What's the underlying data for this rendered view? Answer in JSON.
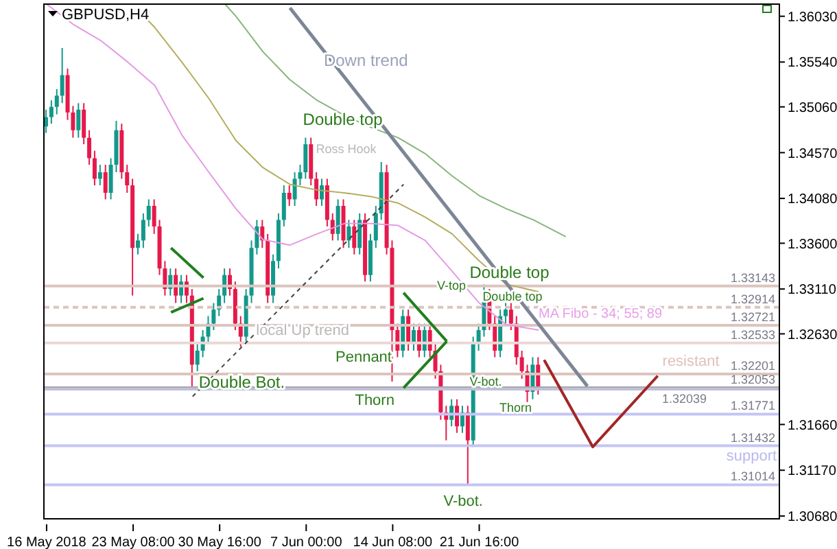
{
  "chart_data": {
    "type": "candlestick",
    "title": "GBPUSD,H4",
    "categories": [
      "16 May 2018",
      null,
      null,
      null,
      null,
      null,
      null,
      null,
      null,
      null,
      null,
      null,
      null,
      null,
      null,
      null,
      "23 May 08:00",
      null,
      null,
      null,
      null,
      null,
      null,
      null,
      null,
      null,
      null,
      null,
      null,
      null,
      null,
      null,
      "30 May 16:00",
      null,
      null,
      null,
      null,
      null,
      null,
      null,
      null,
      null,
      null,
      null,
      null,
      null,
      null,
      null,
      "7 Jun 00:00",
      null,
      null,
      null,
      null,
      null,
      null,
      null,
      null,
      null,
      null,
      null,
      null,
      null,
      null,
      null,
      "14 Jun 08:00",
      null,
      null,
      null,
      null,
      null,
      null,
      null,
      null,
      null,
      null,
      null,
      null,
      null,
      null,
      null,
      "21 Jun 16:00",
      null,
      null,
      null,
      null,
      null,
      null,
      null,
      null,
      null,
      null,
      null,
      null,
      null,
      null,
      null,
      null,
      null,
      null,
      null,
      null,
      null,
      null,
      null,
      null,
      null,
      null,
      null,
      null,
      null,
      null,
      null,
      null,
      null,
      null,
      null,
      null,
      null,
      null,
      null,
      null,
      null,
      null,
      null,
      null,
      null,
      null,
      null,
      null,
      null,
      null,
      null,
      null,
      null,
      null,
      null
    ],
    "colors": [
      "#13988a",
      "#13988a",
      "#13988a",
      "#13988a",
      "#e6194b",
      "#e6194b",
      "#13988a",
      "#e6194b",
      "#e6194b",
      "#e6194b",
      "#13988a",
      "#e6194b",
      "#13988a",
      "#13988a",
      "#e6194b",
      "#e6194b",
      "#e6194b",
      "#13988a",
      "#13988a",
      "#13988a",
      "#e6194b",
      "#e6194b",
      "#e6194b",
      "#13988a",
      "#e6194b",
      "#13988a",
      "#e6194b",
      "#e6194b",
      "#13988a",
      "#13988a",
      "#13988a",
      "#13988a",
      "#13988a",
      "#13988a",
      "#e6194b",
      "#e6194b",
      "#e6194b",
      "#13988a",
      "#13988a",
      "#13988a",
      "#e6194b",
      "#e6194b",
      "#13988a",
      "#13988a",
      "#13988a",
      "#e6194b",
      "#13988a",
      "#13988a",
      "#13988a",
      "#e6194b",
      "#e6194b",
      "#13988a",
      "#e6194b",
      "#e6194b",
      "#13988a",
      "#e6194b",
      "#13988a",
      "#e6194b",
      "#13988a",
      "#e6194b",
      "#13988a",
      "#13988a",
      "#13988a",
      "#e6194b",
      "#e6194b",
      "#e6194b",
      "#13988a",
      "#e6194b",
      "#13988a",
      "#e6194b",
      "#13988a",
      "#e6194b",
      "#e6194b",
      "#e6194b",
      "#e6194b",
      "#13988a",
      "#e6194b",
      "#13988a",
      "#e6194b",
      "#13988a",
      "#13988a",
      "#13988a",
      "#e6194b",
      "#e6194b",
      "#13988a",
      "#13988a",
      "#e6194b",
      "#e6194b",
      "#e6194b",
      "#e6194b",
      "#13988a",
      "#e6194b",
      null,
      null,
      null,
      null,
      null,
      null,
      null,
      null,
      null,
      null,
      null,
      null,
      null,
      null,
      null,
      null,
      null,
      null,
      null,
      null,
      null,
      null,
      null,
      null,
      null,
      null,
      null,
      null,
      null,
      null,
      null,
      null,
      null,
      null,
      null,
      null,
      null,
      null,
      null,
      null,
      null,
      null,
      null,
      null
    ],
    "ohlc": [
      [
        1.3485,
        1.3503,
        1.3478,
        1.3495
      ],
      [
        1.3495,
        1.3513,
        1.3488,
        1.3506
      ],
      [
        1.3506,
        1.3525,
        1.3498,
        1.3518
      ],
      [
        1.3518,
        1.3569,
        1.351,
        1.354
      ],
      [
        1.354,
        1.3547,
        1.3492,
        1.35
      ],
      [
        1.35,
        1.3507,
        1.3473,
        1.3481
      ],
      [
        1.3481,
        1.351,
        1.3473,
        1.3503
      ],
      [
        1.3503,
        1.351,
        1.3466,
        1.3473
      ],
      [
        1.3473,
        1.3481,
        1.3444,
        1.3451
      ],
      [
        1.3451,
        1.3459,
        1.3422,
        1.3429
      ],
      [
        1.3429,
        1.3444,
        1.3422,
        1.3436
      ],
      [
        1.3436,
        1.3444,
        1.3407,
        1.3414
      ],
      [
        1.3414,
        1.3451,
        1.3407,
        1.3444
      ],
      [
        1.3444,
        1.3491,
        1.3436,
        1.3481
      ],
      [
        1.3481,
        1.3488,
        1.3429,
        1.3436
      ],
      [
        1.3436,
        1.3444,
        1.3414,
        1.3422
      ],
      [
        1.3422,
        1.3429,
        1.3304,
        1.3355
      ],
      [
        1.3355,
        1.337,
        1.3348,
        1.3363
      ],
      [
        1.3363,
        1.3392,
        1.3355,
        1.3385
      ],
      [
        1.3385,
        1.3407,
        1.3378,
        1.34
      ],
      [
        1.34,
        1.3407,
        1.337,
        1.3378
      ],
      [
        1.3378,
        1.3385,
        1.3326,
        1.3333
      ],
      [
        1.3333,
        1.3341,
        1.3304,
        1.3311
      ],
      [
        1.3311,
        1.3333,
        1.3304,
        1.3326
      ],
      [
        1.3326,
        1.3333,
        1.3296,
        1.3304
      ],
      [
        1.3304,
        1.3326,
        1.3296,
        1.3319
      ],
      [
        1.3319,
        1.3326,
        1.3296,
        1.3304
      ],
      [
        1.3304,
        1.3311,
        1.3204,
        1.323
      ],
      [
        1.323,
        1.3252,
        1.3223,
        1.3245
      ],
      [
        1.3245,
        1.3267,
        1.3238,
        1.326
      ],
      [
        1.326,
        1.3282,
        1.3252,
        1.3274
      ],
      [
        1.3274,
        1.3296,
        1.3267,
        1.3289
      ],
      [
        1.3289,
        1.3311,
        1.3282,
        1.3304
      ],
      [
        1.3304,
        1.3333,
        1.3296,
        1.3326
      ],
      [
        1.3326,
        1.3333,
        1.3304,
        1.3311
      ],
      [
        1.3311,
        1.3319,
        1.3267,
        1.3274
      ],
      [
        1.3274,
        1.3282,
        1.3249,
        1.326
      ],
      [
        1.326,
        1.3311,
        1.3252,
        1.3304
      ],
      [
        1.3304,
        1.3363,
        1.3296,
        1.3355
      ],
      [
        1.3355,
        1.3385,
        1.3348,
        1.3378
      ],
      [
        1.3378,
        1.3385,
        1.3355,
        1.3363
      ],
      [
        1.3363,
        1.337,
        1.3296,
        1.3304
      ],
      [
        1.3304,
        1.3348,
        1.3296,
        1.3341
      ],
      [
        1.3341,
        1.3392,
        1.3333,
        1.3385
      ],
      [
        1.3385,
        1.3422,
        1.3378,
        1.3414
      ],
      [
        1.3414,
        1.3422,
        1.34,
        1.3407
      ],
      [
        1.3407,
        1.3436,
        1.34,
        1.3429
      ],
      [
        1.3429,
        1.3444,
        1.3422,
        1.3436
      ],
      [
        1.3436,
        1.3473,
        1.3429,
        1.3466
      ],
      [
        1.3466,
        1.3473,
        1.3422,
        1.3429
      ],
      [
        1.3429,
        1.3436,
        1.34,
        1.3407
      ],
      [
        1.3407,
        1.3429,
        1.34,
        1.3422
      ],
      [
        1.3422,
        1.3429,
        1.3378,
        1.3385
      ],
      [
        1.3385,
        1.3392,
        1.3363,
        1.337
      ],
      [
        1.337,
        1.3407,
        1.3363,
        1.34
      ],
      [
        1.34,
        1.3407,
        1.3355,
        1.3363
      ],
      [
        1.3363,
        1.3385,
        1.3355,
        1.3378
      ],
      [
        1.3378,
        1.3385,
        1.3348,
        1.3355
      ],
      [
        1.3355,
        1.3392,
        1.3348,
        1.3385
      ],
      [
        1.3385,
        1.3392,
        1.3319,
        1.3326
      ],
      [
        1.3326,
        1.337,
        1.3319,
        1.3363
      ],
      [
        1.3363,
        1.34,
        1.3355,
        1.3392
      ],
      [
        1.3392,
        1.3447,
        1.3385,
        1.3436
      ],
      [
        1.3436,
        1.3444,
        1.3348,
        1.3355
      ],
      [
        1.3355,
        1.3363,
        1.3212,
        1.3267
      ],
      [
        1.3267,
        1.3274,
        1.3238,
        1.3245
      ],
      [
        1.3245,
        1.3289,
        1.3238,
        1.3282
      ],
      [
        1.3282,
        1.3289,
        1.3245,
        1.3252
      ],
      [
        1.3252,
        1.3274,
        1.3245,
        1.3267
      ],
      [
        1.3267,
        1.3274,
        1.3238,
        1.3245
      ],
      [
        1.3245,
        1.3274,
        1.3238,
        1.3267
      ],
      [
        1.3267,
        1.3274,
        1.3238,
        1.3245
      ],
      [
        1.3245,
        1.3252,
        1.3215,
        1.3223
      ],
      [
        1.3223,
        1.323,
        1.3171,
        1.3179
      ],
      [
        1.3179,
        1.3186,
        1.3149,
        1.3171
      ],
      [
        1.3171,
        1.3193,
        1.3164,
        1.3186
      ],
      [
        1.3186,
        1.3193,
        1.3157,
        1.3164
      ],
      [
        1.3164,
        1.3186,
        1.3157,
        1.3179
      ],
      [
        1.3179,
        1.3186,
        1.3101,
        1.3149
      ],
      [
        1.3149,
        1.326,
        1.3142,
        1.3252
      ],
      [
        1.3252,
        1.3274,
        1.3245,
        1.3267
      ],
      [
        1.3267,
        1.3316,
        1.326,
        1.3304
      ],
      [
        1.3304,
        1.3311,
        1.3267,
        1.3274
      ],
      [
        1.3274,
        1.3282,
        1.3238,
        1.3245
      ],
      [
        1.3245,
        1.3289,
        1.3238,
        1.3282
      ],
      [
        1.3282,
        1.3296,
        1.3274,
        1.3289
      ],
      [
        1.3289,
        1.3296,
        1.3267,
        1.3274
      ],
      [
        1.3274,
        1.3282,
        1.323,
        1.3238
      ],
      [
        1.3238,
        1.3245,
        1.3215,
        1.3223
      ],
      [
        1.3223,
        1.323,
        1.319,
        1.3201
      ],
      [
        1.3201,
        1.3238,
        1.3193,
        1.323
      ],
      [
        1.323,
        1.3238,
        1.3198,
        1.32053
      ],
      null,
      null,
      null,
      null,
      null,
      null,
      null,
      null,
      null,
      null,
      null,
      null,
      null,
      null,
      null,
      null,
      null,
      null,
      null,
      null,
      null,
      null,
      null,
      null,
      null,
      null,
      null,
      null,
      null,
      null,
      null,
      null,
      null,
      null,
      null,
      null,
      null,
      null,
      null,
      null,
      null,
      null,
      null,
      null
    ],
    "series": [
      {
        "type": "line",
        "color": "#e39be3",
        "values": [
          1.3616,
          null,
          null,
          null,
          null,
          1.3594,
          null,
          null,
          null,
          null,
          1.3577,
          null,
          null,
          null,
          null,
          1.3554,
          null,
          null,
          null,
          null,
          1.3529,
          null,
          null,
          null,
          null,
          1.3476,
          null,
          null,
          null,
          null,
          1.3436,
          null,
          null,
          null,
          null,
          1.3397,
          null,
          null,
          null,
          null,
          1.3364,
          null,
          null,
          null,
          null,
          1.3358,
          null,
          null,
          null,
          null,
          1.337,
          null,
          null,
          null,
          null,
          1.3381,
          null,
          null,
          null,
          null,
          1.3381,
          null,
          null,
          null,
          null,
          1.3379,
          null,
          null,
          null,
          null,
          1.3363,
          null,
          null,
          null,
          null,
          1.333,
          null,
          null,
          null,
          null,
          1.3296,
          null,
          null,
          null,
          null,
          1.3273,
          null,
          null,
          null,
          null,
          null,
          1.3267,
          null,
          null,
          null,
          null,
          null,
          null,
          null,
          null,
          null,
          null,
          null,
          null,
          null,
          null,
          null,
          null,
          null,
          null,
          null,
          null,
          null,
          null,
          null,
          null,
          null,
          null,
          null,
          null,
          null,
          null,
          null,
          null,
          null,
          null,
          null,
          null,
          null,
          null,
          null,
          null,
          null,
          null,
          null,
          null
        ]
      },
      {
        "type": "line",
        "color": "#b5ad5e",
        "values": [
          null,
          null,
          null,
          null,
          null,
          null,
          null,
          null,
          null,
          null,
          null,
          null,
          null,
          null,
          null,
          null,
          null,
          1.3609,
          null,
          null,
          1.3591,
          null,
          null,
          null,
          null,
          1.3554,
          null,
          null,
          null,
          null,
          1.3515,
          null,
          null,
          null,
          null,
          1.347,
          null,
          null,
          null,
          null,
          1.3441,
          null,
          null,
          null,
          null,
          1.3423,
          null,
          null,
          null,
          null,
          1.3417,
          null,
          null,
          null,
          null,
          1.3414,
          null,
          null,
          null,
          null,
          1.341,
          null,
          null,
          null,
          null,
          1.3403,
          null,
          null,
          null,
          null,
          1.3388,
          null,
          null,
          null,
          null,
          1.337,
          null,
          null,
          null,
          null,
          1.3341,
          null,
          null,
          null,
          null,
          1.3316,
          null,
          null,
          null,
          null,
          null,
          1.3308,
          null,
          null,
          null,
          null,
          null,
          null,
          null,
          null,
          null,
          null,
          null,
          null,
          null,
          null,
          null,
          null,
          null,
          null,
          null,
          null,
          null,
          null,
          null,
          null,
          null,
          null,
          null,
          null,
          null,
          null,
          null,
          null,
          null,
          null,
          null,
          null,
          null,
          null,
          null,
          null,
          null,
          null,
          null,
          null
        ]
      },
      {
        "type": "line",
        "color": "#86b67c",
        "values": [
          null,
          null,
          null,
          null,
          null,
          null,
          null,
          null,
          null,
          null,
          null,
          null,
          null,
          null,
          null,
          null,
          null,
          null,
          null,
          null,
          null,
          null,
          null,
          null,
          null,
          null,
          null,
          null,
          null,
          null,
          null,
          null,
          null,
          1.3616,
          null,
          1.3603,
          null,
          null,
          null,
          null,
          1.3565,
          null,
          null,
          null,
          null,
          1.3535,
          null,
          null,
          null,
          null,
          1.3513,
          null,
          null,
          null,
          null,
          1.3497,
          null,
          null,
          null,
          null,
          1.3484,
          null,
          null,
          null,
          null,
          1.3473,
          null,
          null,
          null,
          null,
          1.3456,
          null,
          null,
          null,
          null,
          1.3432,
          null,
          null,
          null,
          null,
          1.3411,
          null,
          null,
          null,
          null,
          1.3397,
          null,
          null,
          null,
          null,
          1.3385,
          null,
          null,
          null,
          null,
          null,
          1.3367,
          null,
          null,
          null,
          null,
          null,
          null,
          null,
          null,
          null,
          null,
          null,
          null,
          null,
          null,
          null,
          null,
          null,
          null,
          null,
          null,
          null,
          null,
          null,
          null,
          null,
          null,
          null,
          null,
          null,
          null,
          null,
          null,
          null,
          null,
          null,
          null,
          null,
          null,
          null
        ]
      },
      {
        "type": "line",
        "color": "#7c8696",
        "values": [
          null,
          null,
          null,
          null,
          null,
          null,
          null,
          null,
          null,
          null,
          null,
          null,
          null,
          null,
          null,
          null,
          null,
          null,
          null,
          null,
          null,
          null,
          null,
          null,
          null,
          null,
          null,
          null,
          null,
          null,
          null,
          null,
          null,
          null,
          null,
          null,
          null,
          null,
          null,
          null,
          null,
          null,
          null,
          null,
          null,
          1.3612,
          null,
          null,
          null,
          null,
          null,
          null,
          null,
          null,
          null,
          null,
          null,
          null,
          null,
          null,
          null,
          null,
          null,
          null,
          null,
          null,
          null,
          null,
          null,
          null,
          null,
          null,
          null,
          null,
          null,
          null,
          null,
          null,
          null,
          null,
          null,
          null,
          null,
          null,
          null,
          null,
          null,
          null,
          null,
          null,
          null,
          null,
          null,
          null,
          null,
          null,
          null,
          null,
          null,
          null,
          1.3207,
          null,
          null,
          null,
          null,
          null,
          null,
          null,
          null,
          null,
          null,
          null,
          null,
          null,
          null,
          null,
          null,
          null,
          null,
          null,
          null,
          null,
          null,
          null,
          null,
          null,
          null,
          null,
          null,
          null,
          null,
          null,
          null,
          null,
          null,
          null
        ]
      },
      {
        "type": "line",
        "color": "#404040",
        "line_style": "dashed",
        "values": [
          null,
          null,
          null,
          null,
          null,
          null,
          null,
          null,
          null,
          null,
          null,
          null,
          null,
          null,
          null,
          null,
          null,
          null,
          null,
          null,
          null,
          null,
          null,
          null,
          null,
          null,
          null,
          1.3196,
          null,
          null,
          null,
          null,
          null,
          null,
          null,
          null,
          null,
          null,
          null,
          null,
          null,
          null,
          null,
          null,
          null,
          null,
          null,
          null,
          null,
          null,
          null,
          null,
          null,
          null,
          null,
          null,
          null,
          null,
          null,
          null,
          null,
          null,
          null,
          null,
          null,
          null,
          1.3423,
          null,
          null,
          null,
          null,
          null,
          null,
          null,
          null,
          null,
          null,
          null,
          null,
          null,
          null,
          null,
          null,
          null,
          null,
          null,
          null,
          null,
          null,
          null,
          null,
          null,
          null,
          null,
          null,
          null,
          null,
          null,
          null,
          null,
          null,
          null,
          null,
          null,
          null,
          null,
          null,
          null,
          null,
          null,
          null,
          null,
          null,
          null,
          null,
          null,
          null,
          null,
          null,
          null,
          null,
          null,
          null,
          null,
          null,
          null,
          null,
          null,
          null,
          null,
          null,
          null,
          null,
          null,
          null,
          null
        ]
      },
      {
        "type": "line",
        "color": "#1f7f1f",
        "values": [
          null,
          null,
          null,
          null,
          null,
          null,
          null,
          null,
          null,
          null,
          null,
          null,
          null,
          null,
          null,
          null,
          null,
          null,
          null,
          null,
          null,
          null,
          null,
          1.3355,
          null,
          null,
          null,
          null,
          null,
          1.3323,
          null,
          null,
          null,
          null,
          null,
          null,
          null,
          null,
          null,
          null,
          null,
          null,
          null,
          null,
          null,
          null,
          null,
          null,
          null,
          null,
          null,
          null,
          null,
          null,
          null,
          null,
          null,
          null,
          null,
          null,
          null,
          null,
          null,
          null,
          null,
          null,
          null,
          null,
          null,
          null,
          null,
          null,
          null,
          null,
          null,
          null,
          null,
          null,
          null,
          null,
          null,
          null,
          null,
          null,
          null,
          null,
          null,
          null,
          null,
          null,
          null,
          null,
          null,
          null,
          null,
          null,
          null,
          null,
          null,
          null,
          null,
          null,
          null,
          null,
          null,
          null,
          null,
          null,
          null,
          null,
          null,
          null,
          null,
          null,
          null,
          null,
          null,
          null,
          null,
          null,
          null,
          null,
          null,
          null,
          null,
          null,
          null,
          null,
          null,
          null,
          null,
          null,
          null,
          null,
          null,
          null
        ]
      },
      {
        "type": "line",
        "color": "#1f7f1f",
        "values": [
          null,
          null,
          null,
          null,
          null,
          null,
          null,
          null,
          null,
          null,
          null,
          null,
          null,
          null,
          null,
          null,
          null,
          null,
          null,
          null,
          null,
          null,
          null,
          1.3286,
          null,
          null,
          null,
          null,
          null,
          1.3301,
          null,
          null,
          null,
          null,
          null,
          null,
          null,
          null,
          null,
          null,
          null,
          null,
          null,
          null,
          null,
          null,
          null,
          null,
          null,
          null,
          null,
          null,
          null,
          null,
          null,
          null,
          null,
          null,
          null,
          null,
          null,
          null,
          null,
          null,
          null,
          null,
          null,
          null,
          null,
          null,
          null,
          null,
          null,
          null,
          null,
          null,
          null,
          null,
          null,
          null,
          null,
          null,
          null,
          null,
          null,
          null,
          null,
          null,
          null,
          null,
          null,
          null,
          null,
          null,
          null,
          null,
          null,
          null,
          null,
          null,
          null,
          null,
          null,
          null,
          null,
          null,
          null,
          null,
          null,
          null,
          null,
          null,
          null,
          null,
          null,
          null,
          null,
          null,
          null,
          null,
          null,
          null,
          null,
          null,
          null,
          null,
          null,
          null,
          null,
          null,
          null,
          null,
          null,
          null,
          null,
          null
        ]
      },
      {
        "type": "line",
        "color": "#1f7f1f",
        "values": [
          null,
          null,
          null,
          null,
          null,
          null,
          null,
          null,
          null,
          null,
          null,
          null,
          null,
          null,
          null,
          null,
          null,
          null,
          null,
          null,
          null,
          null,
          null,
          null,
          null,
          null,
          null,
          null,
          null,
          null,
          null,
          null,
          null,
          null,
          null,
          null,
          null,
          null,
          null,
          null,
          null,
          null,
          null,
          null,
          null,
          null,
          null,
          null,
          null,
          null,
          null,
          null,
          null,
          null,
          null,
          null,
          null,
          null,
          null,
          null,
          null,
          null,
          null,
          null,
          null,
          null,
          1.3307,
          null,
          null,
          null,
          null,
          null,
          null,
          null,
          1.3255,
          null,
          null,
          null,
          null,
          null,
          null,
          null,
          null,
          null,
          null,
          null,
          null,
          null,
          null,
          null,
          null,
          null,
          null,
          null,
          null,
          null,
          null,
          null,
          null,
          null,
          null,
          null,
          null,
          null,
          null,
          null,
          null,
          null,
          null,
          null,
          null,
          null,
          null,
          null,
          null,
          null,
          null,
          null,
          null,
          null,
          null,
          null,
          null,
          null,
          null,
          null,
          null,
          null,
          null,
          null,
          null,
          null,
          null,
          null,
          null,
          null
        ]
      },
      {
        "type": "line",
        "color": "#1f7f1f",
        "values": [
          null,
          null,
          null,
          null,
          null,
          null,
          null,
          null,
          null,
          null,
          null,
          null,
          null,
          null,
          null,
          null,
          null,
          null,
          null,
          null,
          null,
          null,
          null,
          null,
          null,
          null,
          null,
          null,
          null,
          null,
          null,
          null,
          null,
          null,
          null,
          null,
          null,
          null,
          null,
          null,
          null,
          null,
          null,
          null,
          null,
          null,
          null,
          null,
          null,
          null,
          null,
          null,
          null,
          null,
          null,
          null,
          null,
          null,
          null,
          null,
          null,
          null,
          null,
          null,
          null,
          null,
          1.3205,
          null,
          null,
          null,
          null,
          null,
          null,
          null,
          1.3255,
          null,
          null,
          null,
          null,
          null,
          null,
          null,
          null,
          null,
          null,
          null,
          null,
          null,
          null,
          null,
          null,
          null,
          null,
          null,
          null,
          null,
          null,
          null,
          null,
          null,
          null,
          null,
          null,
          null,
          null,
          null,
          null,
          null,
          null,
          null,
          null,
          null,
          null,
          null,
          null,
          null,
          null,
          null,
          null,
          null,
          null,
          null,
          null,
          null,
          null,
          null,
          null,
          null,
          null,
          null,
          null,
          null,
          null,
          null,
          null,
          null
        ]
      },
      {
        "type": "line",
        "color": "#a32626",
        "values": [
          null,
          null,
          null,
          null,
          null,
          null,
          null,
          null,
          null,
          null,
          null,
          null,
          null,
          null,
          null,
          null,
          null,
          null,
          null,
          null,
          null,
          null,
          null,
          null,
          null,
          null,
          null,
          null,
          null,
          null,
          null,
          null,
          null,
          null,
          null,
          null,
          null,
          null,
          null,
          null,
          null,
          null,
          null,
          null,
          null,
          null,
          null,
          null,
          null,
          null,
          null,
          null,
          null,
          null,
          null,
          null,
          null,
          null,
          null,
          null,
          null,
          null,
          null,
          null,
          null,
          null,
          null,
          null,
          null,
          null,
          null,
          null,
          null,
          null,
          null,
          null,
          null,
          null,
          null,
          null,
          null,
          null,
          null,
          null,
          null,
          null,
          null,
          null,
          null,
          null,
          null,
          null,
          1.3235,
          null,
          null,
          null,
          null,
          null,
          null,
          null,
          null,
          1.3142,
          null,
          null,
          null,
          null,
          null,
          null,
          null,
          null,
          null,
          null,
          null,
          1.3218,
          null,
          null,
          null,
          null,
          null,
          null,
          null,
          null,
          null,
          null,
          null,
          null,
          null,
          null,
          null,
          null,
          null,
          null,
          null,
          null,
          null,
          null
        ]
      }
    ],
    "ylim": [
      1.3065,
      1.3616
    ],
    "yticks": [
      {
        "value": 1.3068,
        "label": "1.30680"
      },
      {
        "value": 1.3117,
        "label": "1.31170"
      },
      {
        "value": 1.3166,
        "label": "1.31660"
      },
      {
        "value": 1.3263,
        "label": "1.32630"
      },
      {
        "value": 1.3311,
        "label": "1.33110"
      },
      {
        "value": 1.336,
        "label": "1.33600"
      },
      {
        "value": 1.3408,
        "label": "1.34080"
      },
      {
        "value": 1.3457,
        "label": "1.34570"
      },
      {
        "value": 1.3506,
        "label": "1.35060"
      },
      {
        "value": 1.3554,
        "label": "1.35540"
      },
      {
        "value": 1.3603,
        "label": "1.36030"
      }
    ],
    "ref_lines": [
      {
        "axis": "y",
        "value": 1.33143,
        "label": "1.33143",
        "color": "#dcc4bf"
      },
      {
        "axis": "y",
        "value": 1.32914,
        "label": "1.32914",
        "color": "#dcc4bf",
        "line_style": "dashed"
      },
      {
        "axis": "y",
        "value": 1.32721,
        "label": "1.32721",
        "color": "#dcc4bf"
      },
      {
        "axis": "y",
        "value": 1.32533,
        "label": "1.32533",
        "color": "#ead8d4"
      },
      {
        "axis": "y",
        "value": 1.32201,
        "label": "1.32201",
        "color": "#dcc4bf"
      },
      {
        "axis": "y",
        "value": 1.32053,
        "label": "1.32053",
        "color": "#a9a9b0"
      },
      {
        "axis": "y",
        "value": 1.32039,
        "label": "1.32039",
        "color": "#c0c0d8"
      },
      {
        "axis": "y",
        "value": 1.31771,
        "label": "1.31771",
        "color": "#c4c4f4"
      },
      {
        "axis": "y",
        "value": 1.31432,
        "label": "1.31432",
        "color": "#c4c4f4"
      },
      {
        "axis": "y",
        "value": 1.31014,
        "label": "1.31014",
        "color": "#c4c4f4"
      }
    ],
    "annotations": [
      "Down trend",
      "Double top",
      "Ross Hook",
      {
        "text": "local  Up trend",
        "y": 1.3265
      },
      {
        "text": "Double Bot.",
        "y": 1.321
      },
      {
        "text": "Pennant",
        "y": 1.3255
      },
      {
        "text": "Thorn",
        "y": 1.3212
      },
      {
        "text": "V-top",
        "y": 1.3314
      },
      {
        "text": "Double top",
        "y": 1.3316
      },
      {
        "text": "Double top",
        "y": 1.3296
      },
      "MA Fibo - 34; 55; 89",
      {
        "text": "V-bot.",
        "y": 1.3211
      },
      {
        "text": "Thorn",
        "y": 1.3183
      },
      {
        "text": "V-bot.",
        "y": 1.3101
      },
      {
        "text": "resistant",
        "y": 1.32201
      },
      {
        "text": "support",
        "y": 1.31432
      }
    ]
  }
}
